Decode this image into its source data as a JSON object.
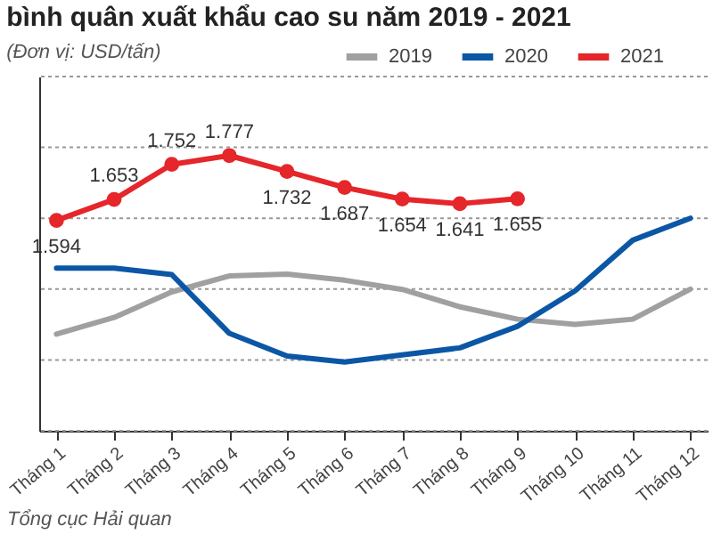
{
  "chart_data": {
    "type": "line",
    "title": "bình quân xuất khẩu cao su năm 2019 - 2021",
    "subtitle": "(Đơn vị: USD/tấn)",
    "categories": [
      "Tháng 1",
      "Tháng 2",
      "Tháng 3",
      "Tháng 4",
      "Tháng 5",
      "Tháng 6",
      "Tháng 7",
      "Tháng 8",
      "Tháng 9",
      "Tháng 10",
      "Tháng 11",
      "Tháng 12"
    ],
    "series": [
      {
        "name": "2019",
        "color": "#a0a0a0",
        "values": [
          1273,
          1320,
          1392,
          1437,
          1442,
          1425,
          1399,
          1350,
          1315,
          1300,
          1315,
          1400
        ]
      },
      {
        "name": "2020",
        "color": "#0b57a6",
        "values": [
          1459,
          1459,
          1441,
          1275,
          1211,
          1194,
          1214,
          1234,
          1295,
          1395,
          1538,
          1600
        ]
      },
      {
        "name": "2021",
        "color": "#e5262a",
        "marker": "circle",
        "values": [
          1594,
          1653,
          1752,
          1777,
          1732,
          1687,
          1654,
          1641,
          1655,
          null,
          null,
          null
        ],
        "value_labels": [
          "1.594",
          "1.653",
          "1.752",
          "1.777",
          "1.732",
          "1.687",
          "1.654",
          "1.641",
          "1.655",
          null,
          null,
          null
        ]
      }
    ],
    "ylim": [
      1000,
      2000
    ],
    "yticks": [
      {
        "value": 1000,
        "label": null
      },
      {
        "value": 1200,
        "label": null
      },
      {
        "value": 1400,
        "label": null
      },
      {
        "value": 1600,
        "label": null
      },
      {
        "value": 1800,
        "label": null
      },
      {
        "value": 2000,
        "label": null
      }
    ],
    "tick_labels": "x",
    "grid": "y",
    "legend": "top right",
    "line_style": "solid",
    "annotations": [
      "Tổng cục Hải quan"
    ]
  }
}
